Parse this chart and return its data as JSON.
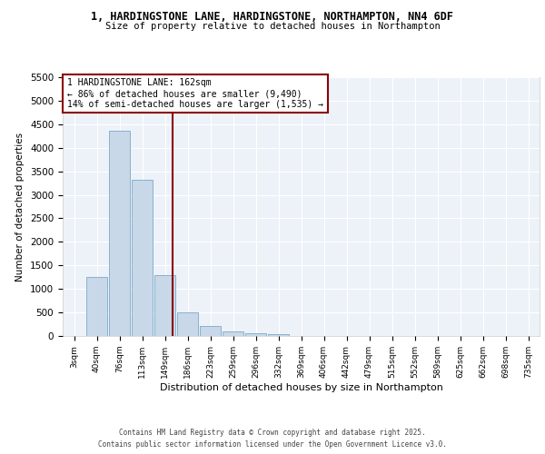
{
  "title1": "1, HARDINGSTONE LANE, HARDINGSTONE, NORTHAMPTON, NN4 6DF",
  "title2": "Size of property relative to detached houses in Northampton",
  "xlabel": "Distribution of detached houses by size in Northampton",
  "ylabel": "Number of detached properties",
  "bin_labels": [
    "3sqm",
    "40sqm",
    "76sqm",
    "113sqm",
    "149sqm",
    "186sqm",
    "223sqm",
    "259sqm",
    "296sqm",
    "332sqm",
    "369sqm",
    "406sqm",
    "442sqm",
    "479sqm",
    "515sqm",
    "552sqm",
    "589sqm",
    "625sqm",
    "662sqm",
    "698sqm",
    "735sqm"
  ],
  "bar_values": [
    0,
    1260,
    4370,
    3310,
    1290,
    500,
    210,
    90,
    50,
    30,
    0,
    0,
    0,
    0,
    0,
    0,
    0,
    0,
    0,
    0,
    0
  ],
  "bar_color": "#c8d8e8",
  "bar_edge_color": "#7aaac8",
  "vline_color": "#8b0000",
  "annotation_text": "1 HARDINGSTONE LANE: 162sqm\n← 86% of detached houses are smaller (9,490)\n14% of semi-detached houses are larger (1,535) →",
  "annotation_box_color": "#8b0000",
  "ylim": [
    0,
    5500
  ],
  "yticks": [
    0,
    500,
    1000,
    1500,
    2000,
    2500,
    3000,
    3500,
    4000,
    4500,
    5000,
    5500
  ],
  "background_color": "#edf2f8",
  "grid_color": "#ffffff",
  "footer_line1": "Contains HM Land Registry data © Crown copyright and database right 2025.",
  "footer_line2": "Contains public sector information licensed under the Open Government Licence v3.0."
}
